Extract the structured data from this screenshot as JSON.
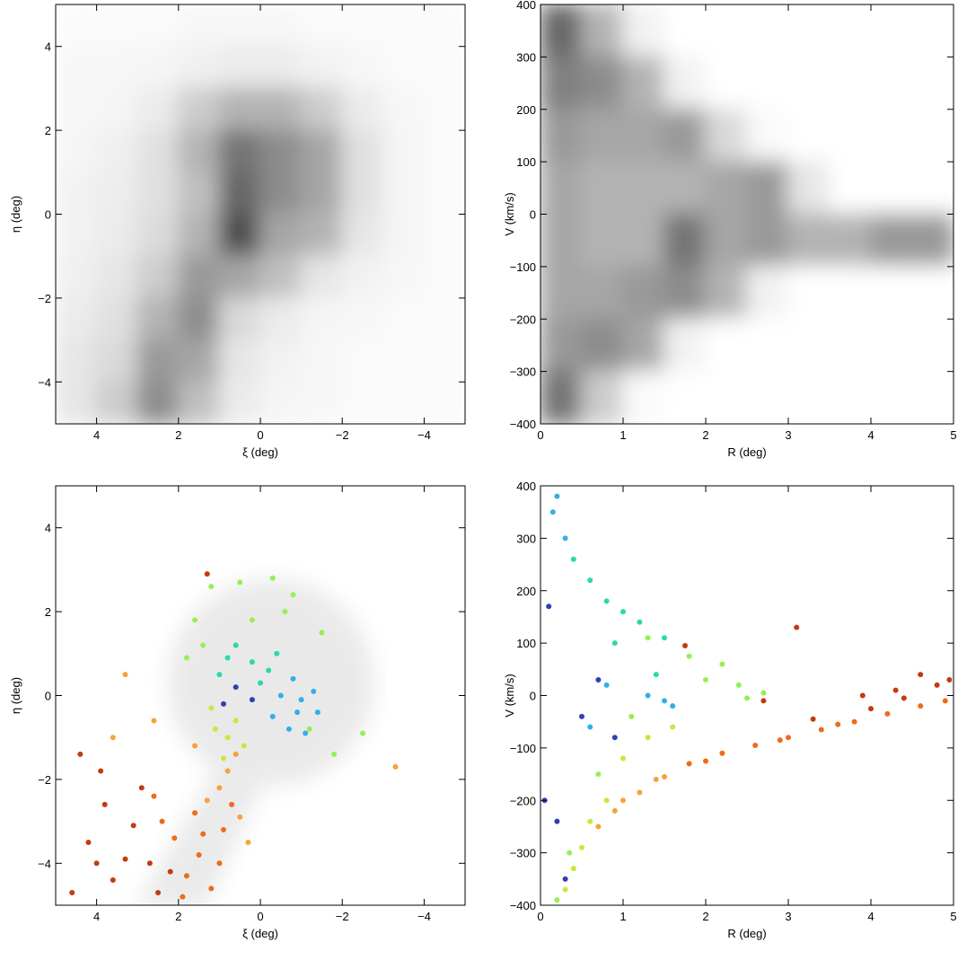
{
  "chart_data": [
    {
      "type": "heatmap",
      "xlabel": "ξ (deg)",
      "ylabel": "η (deg)",
      "xlim": [
        5,
        -5
      ],
      "ylim": [
        -5,
        5
      ],
      "xticks": [
        4,
        2,
        0,
        {
          "value": -2,
          "label": "−2"
        },
        {
          "value": -4,
          "label": "−4"
        }
      ],
      "yticks": [
        {
          "value": -4,
          "label": "−4"
        },
        {
          "value": -2,
          "label": "−2"
        },
        0,
        2,
        4
      ],
      "x": [
        4.5,
        3.5,
        2.5,
        1.5,
        0.5,
        -0.5,
        -1.5,
        -2.5,
        -3.5,
        -4.5
      ],
      "y": [
        4.5,
        3.5,
        2.5,
        1.5,
        0.5,
        -0.5,
        -1.5,
        -2.5,
        -3.5,
        -4.5
      ],
      "z": [
        [
          0.02,
          0.02,
          0.02,
          0.03,
          0.03,
          0.03,
          0.02,
          0.02,
          0.02,
          0.02
        ],
        [
          0.03,
          0.03,
          0.04,
          0.06,
          0.08,
          0.08,
          0.05,
          0.03,
          0.02,
          0.02
        ],
        [
          0.03,
          0.04,
          0.08,
          0.2,
          0.3,
          0.3,
          0.2,
          0.08,
          0.03,
          0.02
        ],
        [
          0.04,
          0.06,
          0.12,
          0.3,
          0.55,
          0.45,
          0.35,
          0.12,
          0.04,
          0.02
        ],
        [
          0.05,
          0.07,
          0.12,
          0.25,
          0.6,
          0.45,
          0.35,
          0.12,
          0.04,
          0.02
        ],
        [
          0.05,
          0.08,
          0.14,
          0.3,
          0.7,
          0.35,
          0.3,
          0.1,
          0.04,
          0.02
        ],
        [
          0.06,
          0.1,
          0.2,
          0.4,
          0.35,
          0.25,
          0.1,
          0.05,
          0.03,
          0.02
        ],
        [
          0.08,
          0.12,
          0.3,
          0.45,
          0.15,
          0.08,
          0.04,
          0.03,
          0.02,
          0.02
        ],
        [
          0.1,
          0.15,
          0.4,
          0.35,
          0.1,
          0.05,
          0.03,
          0.02,
          0.02,
          0.02
        ],
        [
          0.1,
          0.2,
          0.45,
          0.25,
          0.08,
          0.04,
          0.03,
          0.02,
          0.02,
          0.02
        ]
      ]
    },
    {
      "type": "heatmap",
      "xlabel": "R (deg)",
      "ylabel": "V (km/s)",
      "xlim": [
        0,
        5
      ],
      "ylim": [
        -400,
        400
      ],
      "xticks": [
        0,
        1,
        2,
        3,
        4,
        5
      ],
      "yticks": [
        {
          "value": -400,
          "label": "−400"
        },
        {
          "value": -300,
          "label": "−300"
        },
        {
          "value": -200,
          "label": "−200"
        },
        {
          "value": -100,
          "label": "−100"
        },
        0,
        100,
        200,
        300,
        400
      ],
      "x": [
        0.25,
        0.75,
        1.25,
        1.75,
        2.25,
        2.75,
        3.25,
        3.75,
        4.25,
        4.75
      ],
      "y": [
        350,
        250,
        150,
        50,
        -50,
        -150,
        -250,
        -350
      ],
      "z": [
        [
          0.6,
          0.3,
          0.05,
          0,
          0,
          0,
          0,
          0,
          0,
          0
        ],
        [
          0.5,
          0.45,
          0.3,
          0.05,
          0,
          0,
          0,
          0,
          0,
          0
        ],
        [
          0.4,
          0.35,
          0.35,
          0.4,
          0.15,
          0.02,
          0,
          0,
          0,
          0
        ],
        [
          0.35,
          0.3,
          0.3,
          0.3,
          0.35,
          0.4,
          0.1,
          0,
          0,
          0
        ],
        [
          0.35,
          0.3,
          0.3,
          0.55,
          0.35,
          0.4,
          0.3,
          0.3,
          0.4,
          0.4
        ],
        [
          0.35,
          0.35,
          0.4,
          0.45,
          0.3,
          0.05,
          0,
          0,
          0,
          0
        ],
        [
          0.4,
          0.45,
          0.35,
          0.05,
          0,
          0,
          0,
          0,
          0,
          0
        ],
        [
          0.55,
          0.2,
          0.02,
          0,
          0,
          0,
          0,
          0,
          0,
          0
        ]
      ]
    },
    {
      "type": "scatter",
      "xlabel": "ξ (deg)",
      "ylabel": "η (deg)",
      "xlim": [
        5,
        -5
      ],
      "ylim": [
        -5,
        5
      ],
      "xticks": [
        4,
        2,
        0,
        {
          "value": -2,
          "label": "−2"
        },
        {
          "value": -4,
          "label": "−4"
        }
      ],
      "yticks": [
        {
          "value": -4,
          "label": "−4"
        },
        {
          "value": -2,
          "label": "−2"
        },
        0,
        2,
        4
      ],
      "series": [
        {
          "color": "#c43a10",
          "x": [
            4.4,
            3.8,
            4.2,
            3.3,
            2.9,
            3.6,
            2.5,
            4.6,
            3.1,
            2.2,
            3.9,
            1.3,
            2.7,
            4.0
          ],
          "values": [
            -1.4,
            -2.6,
            -3.5,
            -3.9,
            -2.2,
            -4.4,
            -4.7,
            -4.7,
            -3.1,
            -4.2,
            -1.8,
            2.9,
            -4.0,
            -4.0
          ]
        },
        {
          "color": "#f06a1a",
          "x": [
            1.8,
            1.5,
            2.1,
            1.2,
            0.9,
            1.6,
            2.4,
            1.0,
            1.9,
            0.7,
            2.6,
            1.4
          ],
          "values": [
            -4.3,
            -3.8,
            -3.4,
            -4.6,
            -3.2,
            -2.8,
            -3.0,
            -4.0,
            -4.8,
            -2.6,
            -2.4,
            -3.3
          ]
        },
        {
          "color": "#f8a23a",
          "x": [
            1.0,
            0.8,
            1.3,
            0.5,
            3.6,
            3.3,
            2.6,
            0.6,
            -3.3,
            1.6,
            0.3
          ],
          "values": [
            -2.2,
            -1.8,
            -2.5,
            -2.9,
            -1.0,
            0.5,
            -0.6,
            -1.4,
            -1.7,
            -1.2,
            -3.5
          ]
        },
        {
          "color": "#c8e83a",
          "x": [
            0.8,
            0.6,
            1.1,
            0.4,
            1.2,
            0.9
          ],
          "values": [
            -1.0,
            -0.6,
            -0.8,
            -1.2,
            -0.3,
            -1.5
          ]
        },
        {
          "color": "#96f050",
          "x": [
            1.2,
            0.5,
            -0.3,
            -0.8,
            1.6,
            1.4,
            -1.5,
            -1.2,
            -2.5,
            -1.8,
            0.2,
            1.8,
            -0.6
          ],
          "values": [
            2.6,
            2.7,
            2.8,
            2.4,
            1.8,
            1.2,
            1.5,
            -0.8,
            -0.9,
            -1.4,
            1.8,
            0.9,
            2.0
          ]
        },
        {
          "color": "#2ad8b0",
          "x": [
            0.6,
            0.2,
            -0.4,
            1.0,
            0.0,
            -0.2,
            0.8
          ],
          "values": [
            1.2,
            0.8,
            1.0,
            0.5,
            0.3,
            0.6,
            0.9
          ]
        },
        {
          "color": "#30b0e8",
          "x": [
            -0.5,
            -0.9,
            -1.3,
            -0.7,
            -1.1,
            -0.3,
            -1.4,
            -0.8,
            -1.0
          ],
          "values": [
            0.0,
            -0.4,
            0.1,
            -0.8,
            -0.9,
            -0.5,
            -0.4,
            0.4,
            -0.1
          ]
        },
        {
          "color": "#3040b0",
          "x": [
            0.6,
            0.2,
            0.9
          ],
          "values": [
            0.2,
            -0.1,
            -0.2
          ]
        }
      ]
    },
    {
      "type": "scatter",
      "xlabel": "R (deg)",
      "ylabel": "V (km/s)",
      "xlim": [
        0,
        5
      ],
      "ylim": [
        -400,
        400
      ],
      "xticks": [
        0,
        1,
        2,
        3,
        4,
        5
      ],
      "yticks": [
        {
          "value": -400,
          "label": "−400"
        },
        {
          "value": -300,
          "label": "−300"
        },
        {
          "value": -200,
          "label": "−200"
        },
        {
          "value": -100,
          "label": "−100"
        },
        0,
        100,
        200,
        300,
        400
      ],
      "series": [
        {
          "color": "#f06a1a",
          "x": [
            1.8,
            2.2,
            2.6,
            3.0,
            3.4,
            3.8,
            4.2,
            4.6,
            4.9,
            2.0,
            2.9,
            3.6
          ],
          "values": [
            -130,
            -110,
            -95,
            -80,
            -65,
            -50,
            -35,
            -20,
            -10,
            -125,
            -85,
            -55
          ]
        },
        {
          "color": "#c43a10",
          "x": [
            4.0,
            4.4,
            4.8,
            4.6,
            3.9,
            3.3,
            3.1,
            4.3,
            4.95,
            1.75,
            2.7
          ],
          "values": [
            -25,
            -5,
            20,
            40,
            0,
            -45,
            130,
            10,
            30,
            95,
            -10
          ]
        },
        {
          "color": "#f8a23a",
          "x": [
            1.2,
            1.5,
            0.9,
            1.4,
            0.7,
            1.0
          ],
          "values": [
            -185,
            -155,
            -220,
            -160,
            -250,
            -200
          ]
        },
        {
          "color": "#c8e83a",
          "x": [
            0.5,
            0.4,
            0.8,
            1.0,
            1.3,
            0.6,
            1.6,
            0.3
          ],
          "values": [
            -290,
            -330,
            -200,
            -120,
            -80,
            -240,
            -60,
            -370
          ]
        },
        {
          "color": "#96f050",
          "x": [
            0.2,
            0.35,
            2.0,
            2.4,
            2.7,
            2.2,
            1.8,
            1.3,
            0.7,
            1.1,
            2.5
          ],
          "values": [
            -390,
            -300,
            30,
            20,
            5,
            60,
            75,
            110,
            -150,
            -40,
            -5
          ]
        },
        {
          "color": "#2ad8b0",
          "x": [
            0.6,
            0.8,
            1.0,
            1.2,
            0.4,
            1.5,
            0.9,
            1.4
          ],
          "values": [
            220,
            180,
            160,
            140,
            260,
            110,
            100,
            40
          ]
        },
        {
          "color": "#30b0e8",
          "x": [
            0.2,
            0.3,
            0.15,
            1.5,
            1.6,
            1.3,
            0.8,
            0.6
          ],
          "values": [
            380,
            300,
            350,
            -10,
            -20,
            0,
            20,
            -60
          ]
        },
        {
          "color": "#3040b0",
          "x": [
            0.1,
            0.05,
            0.2,
            0.3,
            0.7,
            0.5,
            0.9
          ],
          "values": [
            170,
            -200,
            -240,
            -350,
            30,
            -40,
            -80
          ]
        }
      ]
    }
  ]
}
